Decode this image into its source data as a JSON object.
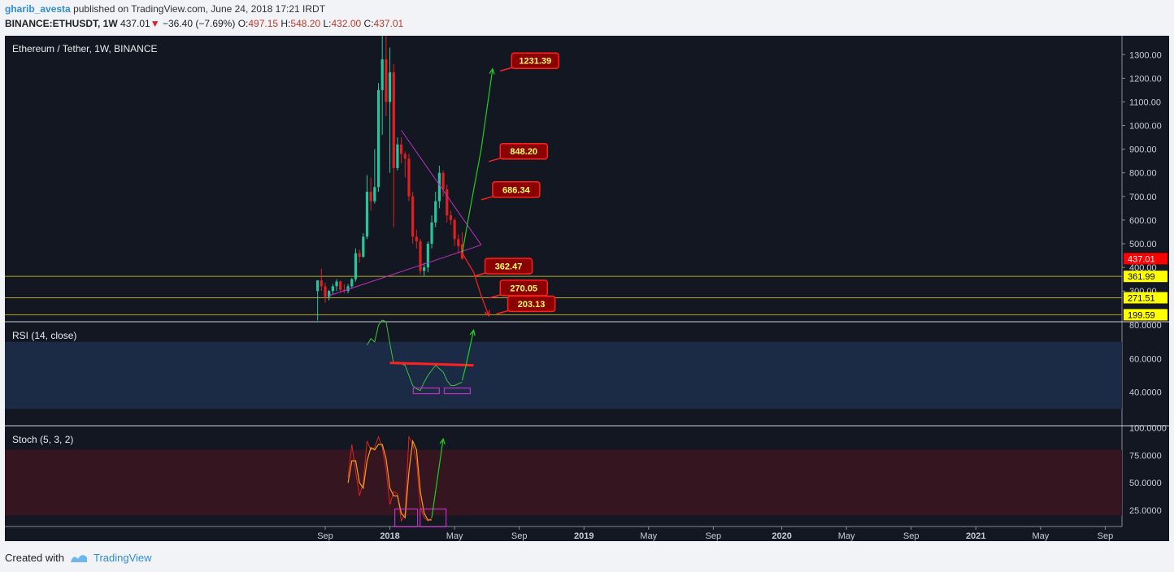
{
  "header": {
    "author": "gharib_avesta",
    "published_text": "published on TradingView.com, June 24, 2018 17:21 IRDT",
    "symbol": "BINANCE:ETHUSDT, 1W",
    "price": "437.01",
    "change": "−36.40 (−7.69%)",
    "o_label": "O:",
    "o_value": "497.15",
    "h_label": "H:",
    "h_value": "548.20",
    "l_label": "L:",
    "l_value": "432.00",
    "c_label": "C:",
    "c_value": "437.01"
  },
  "footer": {
    "created_with": "Created with",
    "brand": "TradingView"
  },
  "colors": {
    "background": "#131722",
    "up": "#26c6a0",
    "down": "#e02020",
    "pattern": "#c030c0",
    "level": "#b5a82a",
    "arrow_up": "#22cc22",
    "arrow_down": "#ff2020"
  },
  "chart_data": [
    {
      "type": "candlestick",
      "title": "Ethereum / Tether, 1W, BINANCE",
      "y_ticks": [
        1300,
        1200,
        1100,
        1000,
        900,
        800,
        700,
        600,
        500,
        400,
        300
      ],
      "y_tick_labels": [
        "1300.00",
        "1200.00",
        "1100.00",
        "1000.00",
        "900.00",
        "800.00",
        "700.00",
        "600.00",
        "500.00",
        "400.00",
        "300.00"
      ],
      "ylim": [
        170,
        1380
      ],
      "x_tick_labels": [
        {
          "label": "Sep",
          "week": 0
        },
        {
          "label": "2018",
          "week": 17
        },
        {
          "label": "May",
          "week": 34
        },
        {
          "label": "Sep",
          "week": 51
        },
        {
          "label": "2019",
          "week": 68
        },
        {
          "label": "May",
          "week": 85
        },
        {
          "label": "Sep",
          "week": 102
        },
        {
          "label": "2020",
          "week": 120
        },
        {
          "label": "May",
          "week": 137
        },
        {
          "label": "Sep",
          "week": 154
        },
        {
          "label": "2021",
          "week": 171
        },
        {
          "label": "May",
          "week": 188
        },
        {
          "label": "Sep",
          "week": 205
        }
      ],
      "candles": [
        {
          "w": -2,
          "o": 300,
          "h": 345,
          "l": 175,
          "c": 345
        },
        {
          "w": -1,
          "o": 345,
          "h": 395,
          "l": 300,
          "c": 320
        },
        {
          "w": 0,
          "o": 320,
          "h": 335,
          "l": 250,
          "c": 275
        },
        {
          "w": 1,
          "o": 275,
          "h": 305,
          "l": 260,
          "c": 300
        },
        {
          "w": 2,
          "o": 300,
          "h": 330,
          "l": 285,
          "c": 320
        },
        {
          "w": 3,
          "o": 320,
          "h": 350,
          "l": 300,
          "c": 340
        },
        {
          "w": 4,
          "o": 340,
          "h": 345,
          "l": 295,
          "c": 305
        },
        {
          "w": 5,
          "o": 305,
          "h": 330,
          "l": 290,
          "c": 300
        },
        {
          "w": 6,
          "o": 300,
          "h": 330,
          "l": 290,
          "c": 320
        },
        {
          "w": 7,
          "o": 320,
          "h": 355,
          "l": 310,
          "c": 350
        },
        {
          "w": 8,
          "o": 350,
          "h": 480,
          "l": 340,
          "c": 460
        },
        {
          "w": 9,
          "o": 460,
          "h": 475,
          "l": 420,
          "c": 445
        },
        {
          "w": 10,
          "o": 445,
          "h": 545,
          "l": 440,
          "c": 530
        },
        {
          "w": 11,
          "o": 530,
          "h": 790,
          "l": 520,
          "c": 720
        },
        {
          "w": 12,
          "o": 720,
          "h": 780,
          "l": 640,
          "c": 680
        },
        {
          "w": 13,
          "o": 680,
          "h": 900,
          "l": 670,
          "c": 740
        },
        {
          "w": 14,
          "o": 740,
          "h": 1180,
          "l": 720,
          "c": 1150
        },
        {
          "w": 15,
          "o": 1150,
          "h": 1400,
          "l": 960,
          "c": 1280
        },
        {
          "w": 16,
          "o": 1280,
          "h": 1420,
          "l": 1040,
          "c": 1100
        },
        {
          "w": 17,
          "o": 1100,
          "h": 1330,
          "l": 800,
          "c": 1225
        },
        {
          "w": 18,
          "o": 1225,
          "h": 1260,
          "l": 570,
          "c": 820
        },
        {
          "w": 19,
          "o": 820,
          "h": 950,
          "l": 810,
          "c": 920
        },
        {
          "w": 20,
          "o": 920,
          "h": 950,
          "l": 840,
          "c": 880
        },
        {
          "w": 21,
          "o": 880,
          "h": 890,
          "l": 780,
          "c": 860
        },
        {
          "w": 22,
          "o": 860,
          "h": 880,
          "l": 680,
          "c": 700
        },
        {
          "w": 23,
          "o": 700,
          "h": 720,
          "l": 500,
          "c": 530
        },
        {
          "w": 24,
          "o": 530,
          "h": 560,
          "l": 480,
          "c": 510
        },
        {
          "w": 25,
          "o": 510,
          "h": 520,
          "l": 370,
          "c": 385
        },
        {
          "w": 26,
          "o": 385,
          "h": 420,
          "l": 365,
          "c": 400
        },
        {
          "w": 27,
          "o": 400,
          "h": 510,
          "l": 380,
          "c": 500
        },
        {
          "w": 28,
          "o": 500,
          "h": 620,
          "l": 480,
          "c": 590
        },
        {
          "w": 29,
          "o": 590,
          "h": 720,
          "l": 570,
          "c": 680
        },
        {
          "w": 30,
          "o": 680,
          "h": 830,
          "l": 650,
          "c": 800
        },
        {
          "w": 31,
          "o": 800,
          "h": 810,
          "l": 700,
          "c": 730
        },
        {
          "w": 32,
          "o": 730,
          "h": 750,
          "l": 590,
          "c": 620
        },
        {
          "w": 33,
          "o": 620,
          "h": 640,
          "l": 580,
          "c": 600
        },
        {
          "w": 34,
          "o": 600,
          "h": 610,
          "l": 490,
          "c": 520
        },
        {
          "w": 35,
          "o": 520,
          "h": 540,
          "l": 460,
          "c": 490
        },
        {
          "w": 36,
          "o": 497.15,
          "h": 548.2,
          "l": 432,
          "c": 437.01
        }
      ],
      "horizontal_levels": [
        {
          "value": 361.99,
          "label": "361.99"
        },
        {
          "value": 271.51,
          "label": "271.51"
        },
        {
          "value": 199.59,
          "label": "199.59"
        }
      ],
      "last_price": {
        "value": 437.01,
        "label": "437.01"
      },
      "triangle": [
        {
          "from": {
            "w": 20,
            "v": 980
          },
          "to": {
            "w": 41,
            "v": 495
          }
        },
        {
          "from": {
            "w": 1,
            "v": 280
          },
          "to": {
            "w": 41,
            "v": 495
          }
        }
      ],
      "annotations": [
        {
          "label": "1231.39",
          "w": 46,
          "v": 1231.39
        },
        {
          "label": "848.20",
          "w": 43,
          "v": 848.2
        },
        {
          "label": "686.34",
          "w": 41,
          "v": 686.34
        },
        {
          "label": "362.47",
          "w": 39,
          "v": 362.47
        },
        {
          "label": "270.05",
          "w": 43,
          "v": 270.05
        },
        {
          "label": "203.13",
          "w": 45,
          "v": 203.13
        }
      ],
      "projection_up": [
        {
          "w": 36,
          "v": 460
        },
        {
          "w": 38,
          "v": 640
        },
        {
          "w": 41,
          "v": 900
        },
        {
          "w": 44,
          "v": 1240
        }
      ],
      "projection_down": [
        {
          "w": 36,
          "v": 460
        },
        {
          "w": 39,
          "v": 380
        },
        {
          "w": 41,
          "v": 280
        },
        {
          "w": 43,
          "v": 195
        }
      ]
    },
    {
      "type": "line",
      "title": "RSI (14, close)",
      "y_ticks": [
        80,
        60,
        40
      ],
      "y_tick_labels": [
        "80.0000",
        "60.0000",
        "40.0000"
      ],
      "ylim": [
        20,
        82
      ],
      "band": [
        30,
        70
      ],
      "series": [
        {
          "w": 11,
          "v": 68
        },
        {
          "w": 12,
          "v": 72
        },
        {
          "w": 13,
          "v": 70
        },
        {
          "w": 14,
          "v": 80
        },
        {
          "w": 15,
          "v": 83
        },
        {
          "w": 16,
          "v": 82
        },
        {
          "w": 17,
          "v": 69
        },
        {
          "w": 18,
          "v": 57
        },
        {
          "w": 19,
          "v": 58
        },
        {
          "w": 20,
          "v": 57
        },
        {
          "w": 21,
          "v": 56
        },
        {
          "w": 22,
          "v": 50
        },
        {
          "w": 23,
          "v": 44
        },
        {
          "w": 24,
          "v": 42
        },
        {
          "w": 25,
          "v": 41
        },
        {
          "w": 26,
          "v": 46
        },
        {
          "w": 27,
          "v": 50
        },
        {
          "w": 28,
          "v": 53
        },
        {
          "w": 29,
          "v": 56
        },
        {
          "w": 30,
          "v": 54
        },
        {
          "w": 31,
          "v": 52
        },
        {
          "w": 32,
          "v": 47
        },
        {
          "w": 33,
          "v": 44
        },
        {
          "w": 34,
          "v": 44
        },
        {
          "w": 35,
          "v": 45
        },
        {
          "w": 36,
          "v": 46
        }
      ],
      "resistance": {
        "from": {
          "w": 17,
          "v": 57.5
        },
        "to": {
          "w": 39,
          "v": 56
        }
      },
      "projection_up": [
        {
          "w": 36,
          "v": 47
        },
        {
          "w": 37,
          "v": 56
        },
        {
          "w": 39,
          "v": 77
        }
      ]
    },
    {
      "type": "line",
      "title": "Stoch (5, 3, 2)",
      "y_ticks": [
        100,
        75,
        50,
        25
      ],
      "y_tick_labels": [
        "100.0000",
        "75.0000",
        "50.0000",
        "25.0000"
      ],
      "ylim": [
        10,
        102
      ],
      "band": [
        20,
        80
      ],
      "series_k": [
        {
          "w": 6,
          "v": 55
        },
        {
          "w": 7,
          "v": 85
        },
        {
          "w": 8,
          "v": 60
        },
        {
          "w": 9,
          "v": 38
        },
        {
          "w": 10,
          "v": 50
        },
        {
          "w": 11,
          "v": 88
        },
        {
          "w": 12,
          "v": 80
        },
        {
          "w": 13,
          "v": 82
        },
        {
          "w": 14,
          "v": 92
        },
        {
          "w": 15,
          "v": 82
        },
        {
          "w": 16,
          "v": 62
        },
        {
          "w": 17,
          "v": 30
        },
        {
          "w": 18,
          "v": 42
        },
        {
          "w": 19,
          "v": 40
        },
        {
          "w": 20,
          "v": 15
        },
        {
          "w": 21,
          "v": 22
        },
        {
          "w": 22,
          "v": 92
        },
        {
          "w": 23,
          "v": 85
        },
        {
          "w": 24,
          "v": 70
        },
        {
          "w": 25,
          "v": 28
        },
        {
          "w": 26,
          "v": 18
        },
        {
          "w": 27,
          "v": 15
        },
        {
          "w": 28,
          "v": 18
        }
      ],
      "series_d": [
        {
          "w": 6,
          "v": 50
        },
        {
          "w": 7,
          "v": 70
        },
        {
          "w": 8,
          "v": 70
        },
        {
          "w": 9,
          "v": 50
        },
        {
          "w": 10,
          "v": 45
        },
        {
          "w": 11,
          "v": 70
        },
        {
          "w": 12,
          "v": 82
        },
        {
          "w": 13,
          "v": 80
        },
        {
          "w": 14,
          "v": 85
        },
        {
          "w": 15,
          "v": 85
        },
        {
          "w": 16,
          "v": 72
        },
        {
          "w": 17,
          "v": 45
        },
        {
          "w": 18,
          "v": 38
        },
        {
          "w": 19,
          "v": 38
        },
        {
          "w": 20,
          "v": 22
        },
        {
          "w": 21,
          "v": 18
        },
        {
          "w": 22,
          "v": 60
        },
        {
          "w": 23,
          "v": 88
        },
        {
          "w": 24,
          "v": 80
        },
        {
          "w": 25,
          "v": 42
        },
        {
          "w": 26,
          "v": 22
        },
        {
          "w": 27,
          "v": 16
        },
        {
          "w": 28,
          "v": 16
        }
      ],
      "projection_up": [
        {
          "w": 28,
          "v": 18
        },
        {
          "w": 31,
          "v": 90
        }
      ]
    }
  ]
}
